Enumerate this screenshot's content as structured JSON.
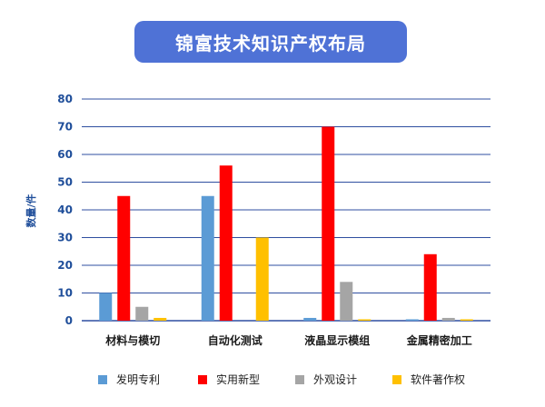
{
  "header": {
    "title": "锦富技术知识产权布局"
  },
  "colors": {
    "title_bg": "#4F72D6",
    "axis_text": "#1F4E9A",
    "gridline": "#2F4FA0",
    "series": [
      "#5B9BD5",
      "#FF0000",
      "#A5A5A5",
      "#FFC000"
    ]
  },
  "chart_data": {
    "type": "bar",
    "title": "锦富技术知识产权布局",
    "ylabel": "数量/件",
    "xlabel": "",
    "ylim": [
      0,
      80
    ],
    "yticks": [
      "0",
      "10",
      "20",
      "30",
      "40",
      "50",
      "60",
      "70",
      "80"
    ],
    "grid": true,
    "legend_position": "bottom",
    "categories": [
      "材料与模切",
      "自动化测试",
      "液晶显示模组",
      "金属精密加工"
    ],
    "series": [
      {
        "name": "发明专利",
        "values": [
          10,
          45,
          1,
          0.5
        ]
      },
      {
        "name": "实用新型",
        "values": [
          45,
          56,
          70,
          24
        ]
      },
      {
        "name": "外观设计",
        "values": [
          5,
          0,
          14,
          1
        ]
      },
      {
        "name": "软件著作权",
        "values": [
          1,
          30,
          0.5,
          0.5
        ]
      }
    ]
  }
}
